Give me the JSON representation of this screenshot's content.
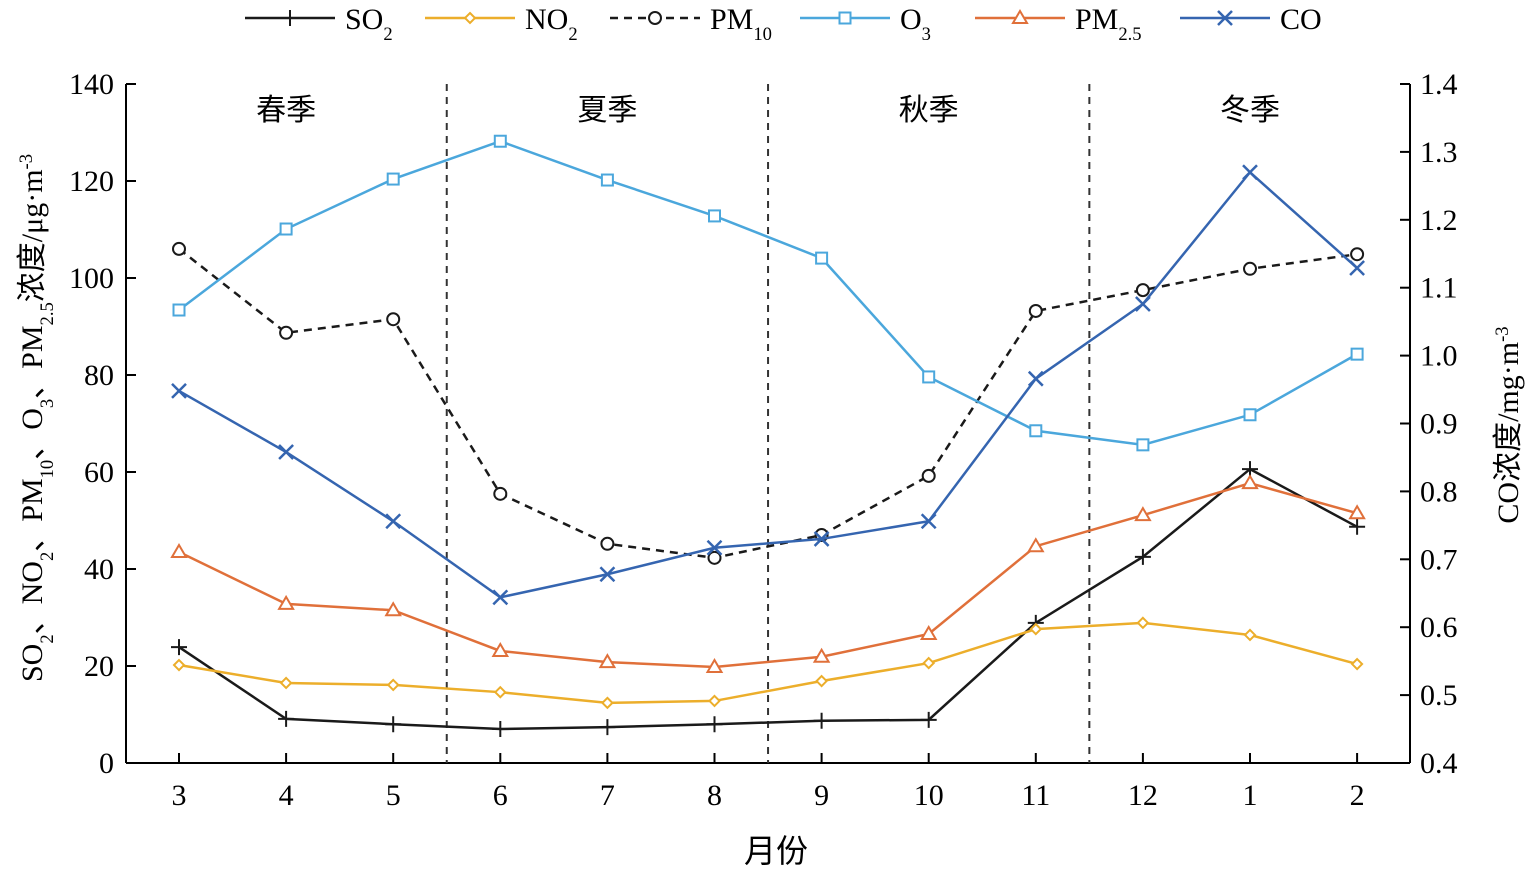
{
  "chart_data": {
    "type": "line",
    "xlabel": "月份",
    "categories": [
      "3",
      "4",
      "5",
      "6",
      "7",
      "8",
      "9",
      "10",
      "11",
      "12",
      "1",
      "2"
    ],
    "ylabel_left_segments": [
      {
        "t": "SO",
        "sub": false
      },
      {
        "t": "2",
        "sub": true
      },
      {
        "t": "、NO",
        "sub": false
      },
      {
        "t": "2",
        "sub": true
      },
      {
        "t": "、PM",
        "sub": false
      },
      {
        "t": "10",
        "sub": true
      },
      {
        "t": "、O",
        "sub": false
      },
      {
        "t": "3",
        "sub": true
      },
      {
        "t": "、PM",
        "sub": false
      },
      {
        "t": "2.5",
        "sub": true
      },
      {
        "t": "浓度/μg·m",
        "sub": false
      },
      {
        "t": "-3",
        "sup": true
      }
    ],
    "ylabel_right_segments": [
      {
        "t": "CO浓度/mg·m",
        "sub": false
      },
      {
        "t": "-3",
        "sup": true
      }
    ],
    "ylim_left": [
      0,
      140
    ],
    "yticks_left": [
      "0",
      "20",
      "40",
      "60",
      "80",
      "100",
      "120",
      "140"
    ],
    "ylim_right": [
      0.4,
      1.4
    ],
    "yticks_right": [
      "0.4",
      "0.5",
      "0.6",
      "0.7",
      "0.8",
      "0.9",
      "1.0",
      "1.1",
      "1.2",
      "1.3",
      "1.4"
    ],
    "grid": false,
    "legend_position": "top",
    "seasons": [
      {
        "label": "春季",
        "from": 0,
        "to": 2
      },
      {
        "label": "夏季",
        "from": 3,
        "to": 5
      },
      {
        "label": "秋季",
        "from": 6,
        "to": 8
      },
      {
        "label": "冬季",
        "from": 9,
        "to": 11
      }
    ],
    "series": [
      {
        "name": "SO",
        "sub": "2",
        "axis": "left",
        "color": "#1a1a1a",
        "marker": "plus",
        "dash": false,
        "values": [
          23.9,
          9.1,
          8.0,
          7.0,
          7.4,
          8.0,
          8.7,
          8.9,
          28.9,
          42.5,
          60.6,
          48.7
        ]
      },
      {
        "name": "NO",
        "sub": "2",
        "axis": "left",
        "color": "#ecae2b",
        "marker": "diamond",
        "dash": false,
        "values": [
          20.2,
          16.5,
          16.1,
          14.6,
          12.4,
          12.8,
          16.9,
          20.6,
          27.6,
          28.9,
          26.4,
          20.4
        ]
      },
      {
        "name": "PM",
        "sub": "10",
        "axis": "left",
        "color": "#1a1a1a",
        "marker": "circle",
        "dash": true,
        "values": [
          106.0,
          88.7,
          91.5,
          55.5,
          45.2,
          42.3,
          47.0,
          59.2,
          93.2,
          97.5,
          101.9,
          104.9
        ]
      },
      {
        "name": "O",
        "sub": "3",
        "axis": "left",
        "color": "#4ba7dc",
        "marker": "square",
        "dash": false,
        "values": [
          93.4,
          110.1,
          120.4,
          128.2,
          120.2,
          112.8,
          104.1,
          79.6,
          68.5,
          65.6,
          71.8,
          84.3
        ]
      },
      {
        "name": "PM",
        "sub": "2.5",
        "axis": "left",
        "color": "#e0703a",
        "marker": "triangle",
        "dash": false,
        "values": [
          43.5,
          32.8,
          31.5,
          23.1,
          20.8,
          19.8,
          21.9,
          26.6,
          44.7,
          51.1,
          57.7,
          51.5
        ]
      },
      {
        "name": "CO",
        "sub": "",
        "axis": "right",
        "color": "#3565b0",
        "marker": "x",
        "dash": false,
        "values": [
          0.948,
          0.858,
          0.756,
          0.644,
          0.678,
          0.717,
          0.73,
          0.756,
          0.966,
          1.076,
          1.27,
          1.129
        ]
      }
    ]
  }
}
